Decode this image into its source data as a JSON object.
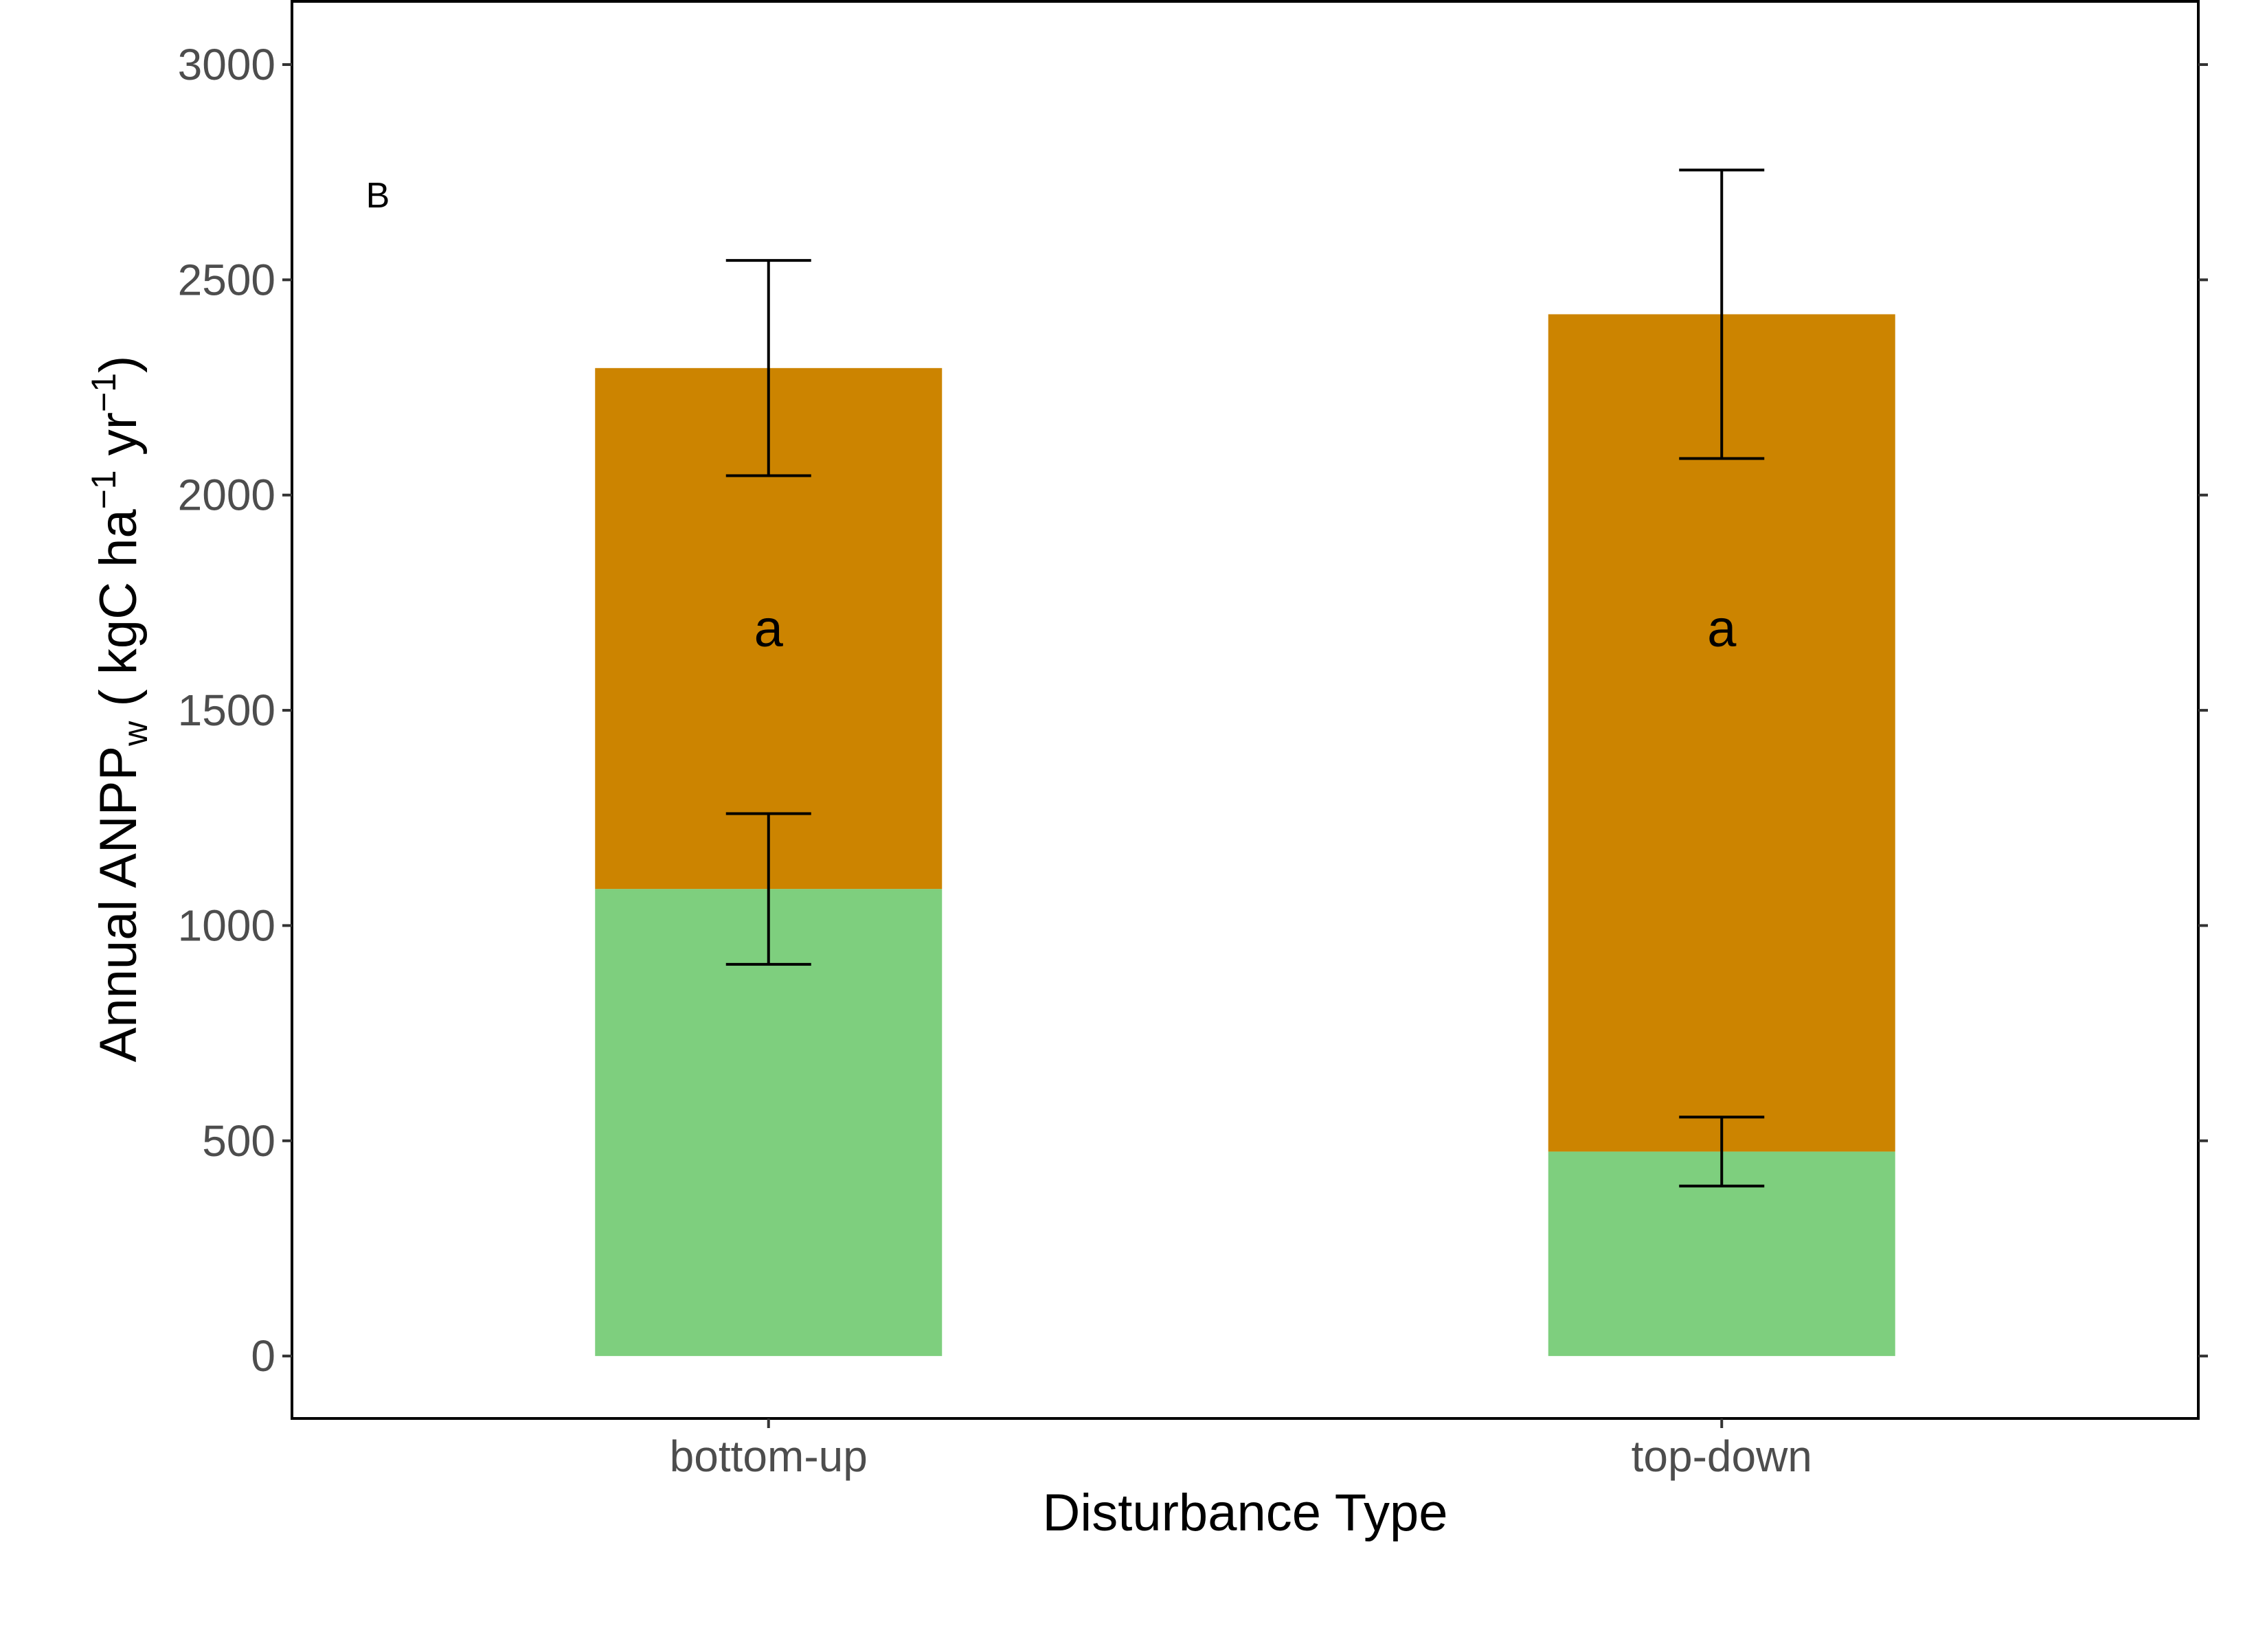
{
  "chart_data": {
    "type": "bar",
    "stacked": true,
    "panel_label": "B",
    "categories": [
      "bottom-up",
      "top-down"
    ],
    "series": [
      {
        "values": [
          1085,
          475
        ],
        "error": [
          [
            910,
            1260
          ],
          [
            395,
            555
          ]
        ],
        "color": "#7ecf7e"
      },
      {
        "values": [
          1210,
          1945
        ],
        "totals": [
          2295,
          2420
        ],
        "error": [
          [
            2045,
            2545
          ],
          [
            2085,
            2755
          ]
        ],
        "color": "#cc8400"
      }
    ],
    "significance_labels": [
      "a",
      "a"
    ],
    "xlabel": "Disturbance Type",
    "ylabel": {
      "main": "Annual ANPP",
      "subscript": "w",
      "units_open": " ( kgC ha",
      "exp1": "−1",
      "units_mid": " yr",
      "exp2": "−1",
      "units_close": ")"
    },
    "yticks": [
      "0",
      "500",
      "1000",
      "1500",
      "2000",
      "2500",
      "3000"
    ],
    "ylim": [
      -145,
      3150
    ],
    "grid": false,
    "legend": "none"
  }
}
